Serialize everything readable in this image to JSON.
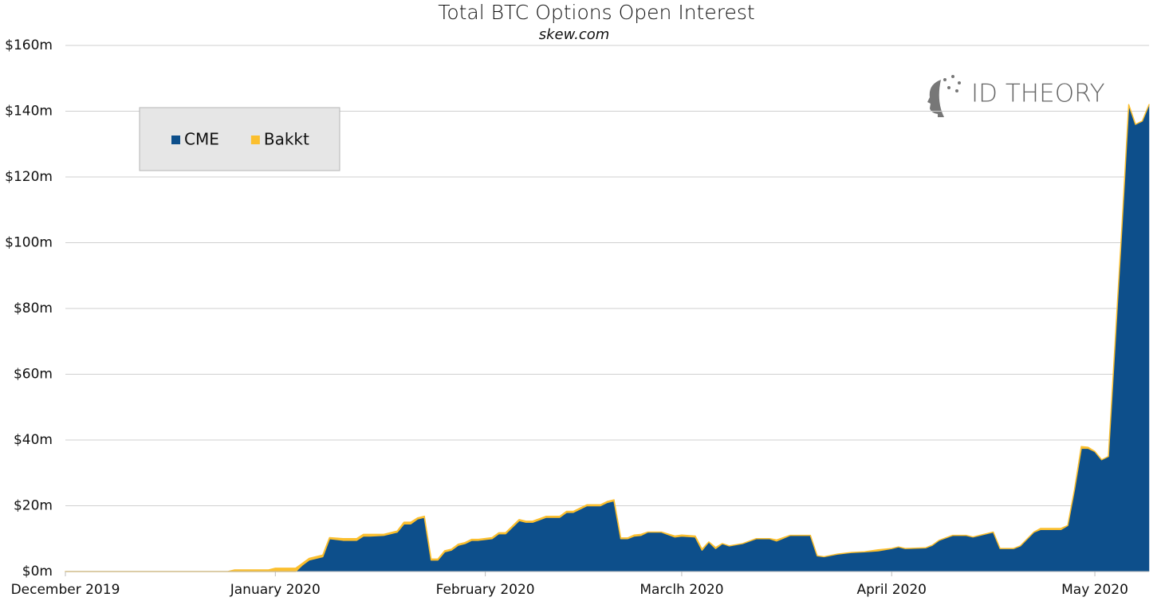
{
  "chart_data": {
    "type": "stacked_area",
    "title": "Total BTC Options Open Interest",
    "subtitle": "skew.com",
    "watermark": "ID THEORY",
    "legend": "upper left",
    "grid": true,
    "x": [
      0,
      24,
      25,
      30,
      31,
      34,
      35,
      36,
      38,
      39,
      41,
      43,
      44,
      45,
      47,
      49,
      50,
      51,
      52,
      53,
      54,
      55,
      56,
      57,
      58,
      59,
      60,
      61,
      63,
      64,
      65,
      67,
      68,
      69,
      71,
      73,
      74,
      75,
      77,
      78,
      79,
      80,
      81,
      82,
      83,
      84,
      85,
      86,
      88,
      90,
      91,
      93,
      94,
      95,
      96,
      97,
      98,
      100,
      102,
      104,
      105,
      107,
      110,
      111,
      112,
      114,
      116,
      118,
      120,
      122,
      123,
      124,
      127,
      128,
      129,
      131,
      133,
      134,
      135,
      137,
      138,
      139,
      140,
      141,
      143,
      144,
      147,
      148,
      149,
      150,
      151,
      152,
      153,
      154,
      155,
      156,
      157,
      158,
      159,
      160
    ],
    "series": [
      {
        "name": "CME",
        "color": "#0d4f8b",
        "values": [
          0,
          0,
          0,
          0,
          0,
          0,
          2,
          3.5,
          4.5,
          10,
          9.5,
          9.5,
          10.8,
          10.8,
          11,
          12,
          14.5,
          14.5,
          16,
          16.5,
          3.5,
          3.5,
          6,
          6.5,
          8,
          8.5,
          9.5,
          9.5,
          10,
          11.5,
          11.5,
          15.5,
          15,
          15,
          16.5,
          16.5,
          18,
          18,
          20,
          20,
          20,
          21,
          21.5,
          10,
          10,
          10.8,
          11,
          12,
          12,
          10.5,
          10.8,
          10.5,
          6.5,
          9,
          7,
          8.5,
          7.8,
          8.5,
          10,
          10,
          9.3,
          11,
          11,
          4.8,
          4.5,
          5.3,
          5.8,
          6,
          6.3,
          7,
          7.5,
          7,
          7.2,
          8,
          9.5,
          11,
          11,
          10.5,
          11,
          12,
          7,
          7,
          7,
          7.8,
          12,
          12.8,
          12.8,
          14,
          25,
          37.5,
          37.5,
          36.5,
          34,
          35,
          70,
          105,
          142,
          136,
          137,
          142
        ]
      },
      {
        "name": "Bakkt",
        "color": "#fbbf2e",
        "values": [
          0,
          0,
          0.5,
          0.5,
          1,
          1,
          0.5,
          0.5,
          0.5,
          0.3,
          0.5,
          0.5,
          0.5,
          0.5,
          0.3,
          0.3,
          0.5,
          0.5,
          0.3,
          0.3,
          0.3,
          0.3,
          0.3,
          0.3,
          0.3,
          0.3,
          0.3,
          0.3,
          0.3,
          0.3,
          0.3,
          0.3,
          0.3,
          0.3,
          0.3,
          0.3,
          0.3,
          0.3,
          0.3,
          0.3,
          0.3,
          0.3,
          0.3,
          0.2,
          0.2,
          0.3,
          0.3,
          0,
          0,
          0.3,
          0.3,
          0.3,
          0.3,
          0,
          0.3,
          0,
          0,
          0,
          0,
          0,
          0.3,
          0,
          0,
          0,
          0,
          0,
          0,
          0,
          0.3,
          0,
          0,
          0,
          0,
          0,
          0,
          0,
          0,
          0,
          0,
          0,
          0,
          0,
          0,
          0,
          0,
          0.3,
          0.3,
          0,
          0,
          0.5,
          0.3,
          0,
          0,
          0,
          0,
          0,
          0,
          0,
          0,
          0
        ]
      }
    ],
    "xlim": [
      0,
      160
    ],
    "xticks": [
      {
        "value": 0,
        "label": "December 2019"
      },
      {
        "value": 31,
        "label": "January 2020"
      },
      {
        "value": 62,
        "label": "February 2020"
      },
      {
        "value": 91,
        "label": "Marclh 2020"
      },
      {
        "value": 122,
        "label": "April 2020"
      },
      {
        "value": 152,
        "label": "May 2020"
      }
    ],
    "ylim": [
      0,
      160
    ],
    "yticks": [
      {
        "value": 0,
        "label": "$0m"
      },
      {
        "value": 20,
        "label": "$20m"
      },
      {
        "value": 40,
        "label": "$40m"
      },
      {
        "value": 60,
        "label": "$60m"
      },
      {
        "value": 80,
        "label": "$80m"
      },
      {
        "value": 100,
        "label": "$100m"
      },
      {
        "value": 120,
        "label": "$120m"
      },
      {
        "value": 140,
        "label": "$140m"
      },
      {
        "value": 160,
        "label": "$160m"
      }
    ]
  }
}
